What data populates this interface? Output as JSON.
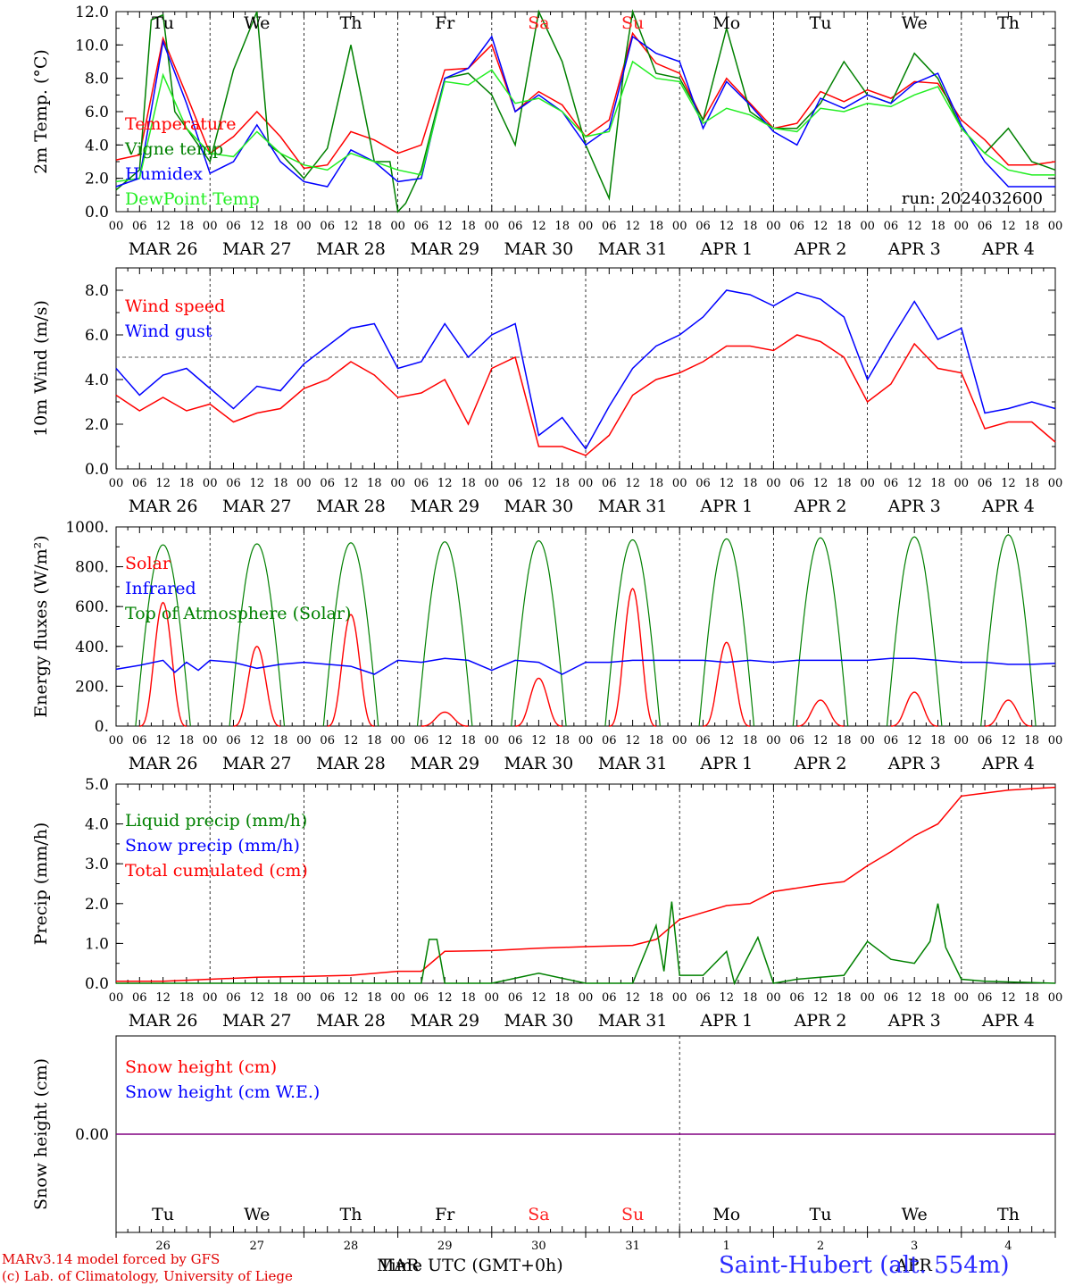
{
  "chart_data": [
    {
      "type": "line",
      "panel": "temperature",
      "ylabel": "2m Temp. (°C)",
      "ylim": [
        0,
        12
      ],
      "yticks": [
        "0.0",
        "2.0",
        "4.0",
        "6.0",
        "8.0",
        "10.0",
        "12.0"
      ],
      "ytick_values": [
        0,
        2,
        4,
        6,
        8,
        10,
        12
      ],
      "annotation": "run: 2024032600",
      "legend": [
        "Temperature",
        "Vigne temp",
        "Humidex",
        "DewPoint Temp"
      ],
      "day_names": [
        "Tu",
        "We",
        "Th",
        "Fr",
        "Sa",
        "Su",
        "Mo",
        "Tu",
        "We",
        "Th"
      ],
      "series": [
        {
          "name": "Temperature",
          "color": "#ff0000",
          "x": [
            0,
            6,
            12,
            18,
            24,
            30,
            36,
            42,
            48,
            54,
            60,
            66,
            72,
            78,
            84,
            90,
            96,
            102,
            108,
            114,
            120,
            126,
            132,
            138,
            144,
            150,
            156,
            162,
            168,
            174,
            180,
            186,
            192,
            198,
            204,
            210,
            216,
            222,
            228,
            234,
            240
          ],
          "y": [
            3.1,
            3.4,
            10.4,
            7.0,
            3.5,
            4.5,
            6.0,
            4.5,
            2.6,
            2.8,
            4.8,
            4.3,
            3.5,
            4.0,
            8.5,
            8.6,
            10.0,
            6.0,
            7.2,
            6.4,
            4.5,
            5.5,
            10.7,
            8.9,
            8.3,
            5.5,
            8.0,
            6.5,
            5.0,
            5.3,
            7.2,
            6.6,
            7.3,
            6.8,
            7.8,
            7.7,
            5.5,
            4.3,
            2.8,
            2.8,
            3.0
          ]
        },
        {
          "name": "Vigne temp",
          "color": "#008000",
          "x": [
            0,
            6,
            9,
            12,
            15,
            18,
            24,
            30,
            36,
            39,
            42,
            48,
            54,
            60,
            66,
            70,
            72,
            74,
            78,
            84,
            90,
            96,
            102,
            108,
            114,
            120,
            126,
            130,
            132,
            138,
            144,
            150,
            156,
            162,
            168,
            174,
            180,
            186,
            192,
            198,
            204,
            210,
            216,
            222,
            228,
            234,
            240
          ],
          "y": [
            1.3,
            2.5,
            11.5,
            11.8,
            6.0,
            5.0,
            3.0,
            8.5,
            12.0,
            4.0,
            3.5,
            2.0,
            3.8,
            10.0,
            3.0,
            3.0,
            0.0,
            0.5,
            2.5,
            8.0,
            8.3,
            7.0,
            4.0,
            12.0,
            9.0,
            4.0,
            0.8,
            9.0,
            12.0,
            8.3,
            8.0,
            5.5,
            11.0,
            6.0,
            5.0,
            5.0,
            6.5,
            9.0,
            7.0,
            6.5,
            9.5,
            8.0,
            5.0,
            3.5,
            5.0,
            3.0,
            2.5
          ]
        },
        {
          "name": "Humidex",
          "color": "#0000ff",
          "x": [
            0,
            6,
            12,
            18,
            24,
            30,
            36,
            42,
            48,
            54,
            60,
            66,
            72,
            78,
            84,
            90,
            96,
            102,
            108,
            114,
            120,
            126,
            132,
            138,
            144,
            150,
            156,
            162,
            168,
            174,
            180,
            186,
            192,
            198,
            204,
            210,
            216,
            222,
            228,
            234,
            240
          ],
          "y": [
            1.5,
            2.0,
            10.2,
            6.5,
            2.3,
            3.0,
            5.2,
            3.0,
            1.8,
            1.5,
            3.7,
            3.0,
            1.8,
            2.0,
            8.0,
            8.6,
            10.5,
            6.0,
            7.0,
            6.0,
            4.0,
            5.0,
            10.5,
            9.5,
            9.0,
            5.0,
            7.8,
            6.4,
            4.8,
            4.0,
            6.8,
            6.2,
            7.0,
            6.5,
            7.7,
            8.3,
            5.2,
            3.0,
            1.5,
            1.5,
            1.5
          ]
        },
        {
          "name": "DewPoint Temp",
          "color": "#22ee22",
          "x": [
            0,
            6,
            12,
            18,
            24,
            30,
            36,
            42,
            48,
            54,
            60,
            66,
            72,
            78,
            84,
            90,
            96,
            102,
            108,
            114,
            120,
            126,
            132,
            138,
            144,
            150,
            156,
            162,
            168,
            174,
            180,
            186,
            192,
            198,
            204,
            210,
            216,
            222,
            228,
            234,
            240
          ],
          "y": [
            1.8,
            2.0,
            8.2,
            5.0,
            3.5,
            3.3,
            4.8,
            3.5,
            2.8,
            2.5,
            3.5,
            3.0,
            2.5,
            2.2,
            7.8,
            7.6,
            8.5,
            6.5,
            6.8,
            6.0,
            4.5,
            4.8,
            9.0,
            8.0,
            7.8,
            5.3,
            6.2,
            5.8,
            5.0,
            4.8,
            6.2,
            6.0,
            6.5,
            6.3,
            7.0,
            7.5,
            5.0,
            3.5,
            2.5,
            2.2,
            2.2
          ]
        }
      ]
    },
    {
      "type": "line",
      "panel": "wind",
      "ylabel": "10m Wind (m/s)",
      "ylim": [
        0,
        9
      ],
      "yticks": [
        "0.0",
        "2.0",
        "4.0",
        "6.0",
        "8.0"
      ],
      "ytick_values": [
        0,
        2,
        4,
        6,
        8
      ],
      "reference_line": 5.0,
      "legend": [
        "Wind speed",
        "Wind gust"
      ],
      "series": [
        {
          "name": "Wind speed",
          "color": "#ff0000",
          "x": [
            0,
            6,
            12,
            18,
            24,
            30,
            36,
            42,
            48,
            54,
            60,
            66,
            72,
            78,
            84,
            90,
            96,
            102,
            108,
            114,
            120,
            126,
            132,
            138,
            144,
            150,
            156,
            162,
            168,
            174,
            180,
            186,
            192,
            198,
            204,
            210,
            216,
            222,
            228,
            234,
            240
          ],
          "y": [
            3.3,
            2.6,
            3.2,
            2.6,
            2.9,
            2.1,
            2.5,
            2.7,
            3.6,
            4.0,
            4.8,
            4.2,
            3.2,
            3.4,
            4.0,
            2.0,
            4.5,
            5.0,
            1.0,
            1.0,
            0.6,
            1.5,
            3.3,
            4.0,
            4.3,
            4.8,
            5.5,
            5.5,
            5.3,
            6.0,
            5.7,
            5.0,
            3.0,
            3.8,
            5.6,
            4.5,
            4.3,
            1.8,
            2.1,
            2.1,
            1.2
          ]
        },
        {
          "name": "Wind gust",
          "color": "#0000ff",
          "x": [
            0,
            6,
            12,
            18,
            24,
            30,
            36,
            42,
            48,
            54,
            60,
            66,
            72,
            78,
            84,
            90,
            96,
            102,
            108,
            114,
            120,
            126,
            132,
            138,
            144,
            150,
            156,
            162,
            168,
            174,
            180,
            186,
            192,
            198,
            204,
            210,
            216,
            222,
            228,
            234,
            240
          ],
          "y": [
            4.5,
            3.3,
            4.2,
            4.5,
            3.6,
            2.7,
            3.7,
            3.5,
            4.7,
            5.5,
            6.3,
            6.5,
            4.5,
            4.8,
            6.5,
            5.0,
            6.0,
            6.5,
            1.5,
            2.3,
            0.9,
            2.8,
            4.5,
            5.5,
            6.0,
            6.8,
            8.0,
            7.8,
            7.3,
            7.9,
            7.6,
            6.8,
            4.0,
            5.8,
            7.5,
            5.8,
            6.3,
            2.5,
            2.7,
            3.0,
            2.7
          ]
        }
      ]
    },
    {
      "type": "line",
      "panel": "energy",
      "ylabel": "Energy fluxes (W/m²)",
      "ylim": [
        0,
        1000
      ],
      "yticks": [
        "0.",
        "200.",
        "400.",
        "600.",
        "800.",
        "1000."
      ],
      "ytick_values": [
        0,
        200,
        400,
        600,
        800,
        1000
      ],
      "legend": [
        "Solar",
        "Infrared",
        "Top of Atmosphere (Solar)"
      ],
      "toa_peaks": [
        910,
        915,
        920,
        925,
        930,
        935,
        940,
        945,
        950,
        960
      ],
      "solar_peaks": [
        620,
        400,
        560,
        70,
        240,
        690,
        420,
        130,
        170,
        130
      ],
      "series": [
        {
          "name": "Infrared",
          "color": "#0000ff",
          "x": [
            0,
            6,
            12,
            15,
            18,
            21,
            24,
            30,
            36,
            42,
            48,
            54,
            60,
            66,
            72,
            78,
            84,
            90,
            96,
            102,
            108,
            114,
            120,
            126,
            132,
            138,
            144,
            150,
            156,
            162,
            168,
            174,
            180,
            186,
            192,
            198,
            204,
            210,
            216,
            222,
            228,
            234,
            240
          ],
          "y": [
            285,
            305,
            330,
            270,
            320,
            280,
            330,
            320,
            290,
            310,
            320,
            310,
            300,
            260,
            330,
            320,
            340,
            330,
            280,
            330,
            320,
            260,
            320,
            320,
            330,
            330,
            330,
            330,
            320,
            330,
            320,
            330,
            330,
            330,
            330,
            340,
            340,
            330,
            320,
            320,
            310,
            310,
            315
          ]
        }
      ]
    },
    {
      "type": "line",
      "panel": "precip",
      "ylabel": "Precip (mm/h)",
      "ylim": [
        0,
        5
      ],
      "yticks": [
        "0.0",
        "1.0",
        "2.0",
        "3.0",
        "4.0",
        "5.0"
      ],
      "ytick_values": [
        0,
        1,
        2,
        3,
        4,
        5
      ],
      "legend": [
        "Liquid precip (mm/h)",
        "Snow precip (mm/h)",
        "Total cumulated (cm)"
      ],
      "series": [
        {
          "name": "Total cumulated (cm)",
          "color": "#ff0000",
          "x": [
            0,
            12,
            24,
            36,
            48,
            60,
            72,
            78,
            84,
            96,
            108,
            120,
            132,
            138,
            144,
            156,
            162,
            168,
            180,
            186,
            192,
            198,
            204,
            210,
            216,
            228,
            240
          ],
          "y": [
            0.05,
            0.05,
            0.1,
            0.15,
            0.17,
            0.2,
            0.3,
            0.3,
            0.8,
            0.82,
            0.88,
            0.92,
            0.95,
            1.1,
            1.6,
            1.95,
            2.0,
            2.3,
            2.48,
            2.55,
            2.95,
            3.3,
            3.7,
            4.0,
            4.7,
            4.85,
            4.92
          ]
        },
        {
          "name": "Liquid precip (mm/h)",
          "color": "#008000",
          "x": [
            0,
            24,
            72,
            78,
            80,
            82,
            84,
            96,
            108,
            120,
            132,
            138,
            140,
            142,
            144,
            150,
            156,
            158,
            164,
            168,
            174,
            180,
            186,
            192,
            198,
            204,
            208,
            210,
            212,
            216,
            222,
            240
          ],
          "y": [
            0,
            0,
            0,
            0,
            1.1,
            1.1,
            0,
            0,
            0.25,
            0,
            0,
            1.45,
            0.3,
            2.05,
            0.2,
            0.2,
            0.8,
            0,
            1.15,
            0,
            0.1,
            0.15,
            0.2,
            1.05,
            0.6,
            0.5,
            1.05,
            2.0,
            0.9,
            0.1,
            0.05,
            0
          ]
        }
      ]
    },
    {
      "type": "line",
      "panel": "snow",
      "ylabel": "Snow height (cm)",
      "ylim": [
        -1,
        1
      ],
      "yticks": [
        "0.00"
      ],
      "ytick_values": [
        0
      ],
      "legend": [
        "Snow height (cm)",
        "Snow height (cm W.E.)"
      ],
      "series": [
        {
          "name": "Snow height (cm)",
          "color": "#800080",
          "x": [
            0,
            240
          ],
          "y": [
            0,
            0
          ]
        }
      ],
      "day_names": [
        "Tu",
        "We",
        "Th",
        "Fr",
        "Sa",
        "Su",
        "Mo",
        "Tu",
        "We",
        "Th"
      ],
      "day_numbers": [
        "26",
        "27",
        "28",
        "29",
        "30",
        "31",
        "1",
        "2",
        "3",
        "4"
      ]
    }
  ],
  "x_hour_ticks": [
    "00",
    "06",
    "12",
    "18"
  ],
  "x_end_tick": "00",
  "x_date_labels": [
    "MAR 26",
    "MAR 27",
    "MAR 28",
    "MAR 29",
    "MAR 30",
    "MAR 31",
    "APR  1",
    "APR  2",
    "APR  3",
    "APR  4"
  ],
  "colors": {
    "weekend": "#ff2020",
    "weekday": "#000000",
    "legend_red": "#ff0000",
    "legend_green": "#008000",
    "legend_blue": "#0000ff",
    "legend_lightgreen": "#22ee22"
  },
  "footer": {
    "credit_line1": "MARv3.14 model forced by GFS",
    "credit_line2": "(c) Lab. of Climatology, University of Liege",
    "xaxis_title": "Time UTC (GMT+0h)",
    "mar_label": "MAR",
    "apr_label": "APR",
    "station": "Saint-Hubert (alt. 554m)"
  }
}
